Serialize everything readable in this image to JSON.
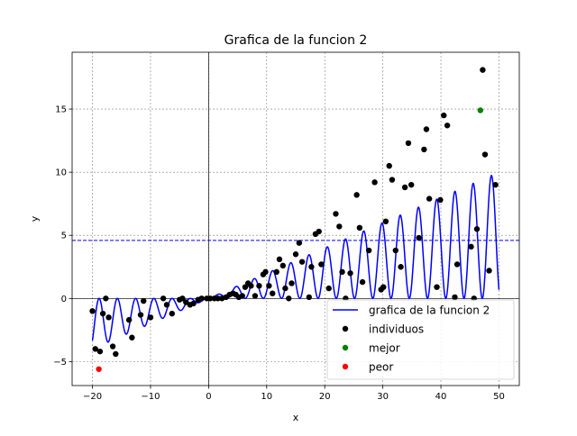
{
  "chart_data": {
    "type": "line",
    "title": "Grafica de la funcion 2",
    "xlabel": "x",
    "ylabel": "y",
    "xlim": [
      -23.5,
      53.5
    ],
    "ylim": [
      -6.9,
      19.5
    ],
    "xticks": [
      -20,
      -10,
      0,
      10,
      20,
      30,
      40,
      50
    ],
    "yticks": [
      -5,
      0,
      5,
      10,
      15
    ],
    "grid": true,
    "legend_position": "bottom-right",
    "hline": {
      "y": 4.6,
      "color": "#0000ff",
      "style": "dashed"
    },
    "series": [
      {
        "name": "grafica de la funcion 2",
        "kind": "line",
        "color": "#0000ff",
        "x_range": [
          -20,
          50
        ],
        "formula": "0.2*x*sin(x)^2 (approx.)"
      },
      {
        "name": "individuos",
        "kind": "scatter",
        "color": "#000000",
        "points": [
          [
            -20.0,
            -1.0
          ],
          [
            -19.5,
            -4.0
          ],
          [
            -18.7,
            -4.2
          ],
          [
            -18.2,
            -1.2
          ],
          [
            -17.7,
            0.0
          ],
          [
            -17.2,
            -1.5
          ],
          [
            -16.5,
            -3.8
          ],
          [
            -16.0,
            -4.4
          ],
          [
            -13.7,
            -1.7
          ],
          [
            -13.2,
            -3.1
          ],
          [
            -11.7,
            -1.3
          ],
          [
            -11.2,
            -0.2
          ],
          [
            -10.0,
            -1.5
          ],
          [
            -7.8,
            0.0
          ],
          [
            -7.2,
            -0.5
          ],
          [
            -6.3,
            -1.2
          ],
          [
            -5.0,
            -0.1
          ],
          [
            -4.5,
            0.0
          ],
          [
            -3.9,
            -0.3
          ],
          [
            -3.2,
            -0.5
          ],
          [
            -2.6,
            -0.4
          ],
          [
            -1.8,
            -0.1
          ],
          [
            -1.2,
            0.0
          ],
          [
            -0.3,
            0.0
          ],
          [
            0.3,
            0.0
          ],
          [
            1.0,
            0.0
          ],
          [
            1.6,
            0.0
          ],
          [
            2.3,
            0.0
          ],
          [
            3.0,
            0.1
          ],
          [
            3.6,
            0.3
          ],
          [
            4.2,
            0.4
          ],
          [
            4.7,
            0.3
          ],
          [
            5.2,
            0.1
          ],
          [
            5.8,
            0.2
          ],
          [
            6.3,
            0.9
          ],
          [
            6.8,
            1.2
          ],
          [
            7.3,
            1.0
          ],
          [
            8.0,
            0.2
          ],
          [
            8.7,
            1.0
          ],
          [
            9.4,
            1.9
          ],
          [
            9.8,
            2.1
          ],
          [
            10.4,
            1.0
          ],
          [
            11.0,
            0.4
          ],
          [
            11.7,
            2.1
          ],
          [
            12.2,
            3.1
          ],
          [
            12.8,
            2.6
          ],
          [
            13.2,
            0.8
          ],
          [
            13.8,
            0.0
          ],
          [
            14.3,
            1.2
          ],
          [
            15.0,
            3.5
          ],
          [
            15.6,
            4.4
          ],
          [
            16.1,
            2.9
          ],
          [
            17.3,
            0.1
          ],
          [
            17.7,
            2.5
          ],
          [
            18.4,
            5.1
          ],
          [
            19.0,
            5.3
          ],
          [
            19.4,
            2.7
          ],
          [
            20.7,
            0.8
          ],
          [
            21.9,
            6.7
          ],
          [
            22.5,
            5.7
          ],
          [
            23.0,
            2.1
          ],
          [
            23.6,
            0.0
          ],
          [
            24.4,
            2.0
          ],
          [
            25.5,
            8.2
          ],
          [
            26.0,
            5.6
          ],
          [
            26.5,
            1.3
          ],
          [
            27.6,
            3.8
          ],
          [
            28.6,
            9.2
          ],
          [
            29.7,
            0.7
          ],
          [
            30.1,
            0.9
          ],
          [
            30.5,
            6.1
          ],
          [
            31.1,
            10.5
          ],
          [
            31.6,
            9.4
          ],
          [
            32.2,
            3.8
          ],
          [
            33.1,
            2.5
          ],
          [
            33.8,
            8.8
          ],
          [
            34.4,
            12.3
          ],
          [
            34.9,
            9.0
          ],
          [
            36.2,
            4.8
          ],
          [
            37.1,
            11.8
          ],
          [
            37.5,
            13.4
          ],
          [
            38.0,
            7.9
          ],
          [
            39.3,
            0.9
          ],
          [
            39.9,
            7.8
          ],
          [
            40.5,
            14.5
          ],
          [
            41.1,
            13.7
          ],
          [
            42.4,
            0.1
          ],
          [
            42.8,
            2.7
          ],
          [
            45.2,
            4.1
          ],
          [
            45.7,
            0.0
          ],
          [
            46.2,
            5.5
          ],
          [
            47.2,
            18.1
          ],
          [
            47.6,
            11.4
          ],
          [
            48.3,
            2.2
          ],
          [
            49.4,
            9.0
          ]
        ]
      },
      {
        "name": "mejor",
        "kind": "scatter",
        "color": "#008000",
        "points": [
          [
            46.8,
            14.9
          ]
        ]
      },
      {
        "name": "peor",
        "kind": "scatter",
        "color": "#ff0000",
        "points": [
          [
            -18.9,
            -5.6
          ]
        ]
      }
    ]
  }
}
